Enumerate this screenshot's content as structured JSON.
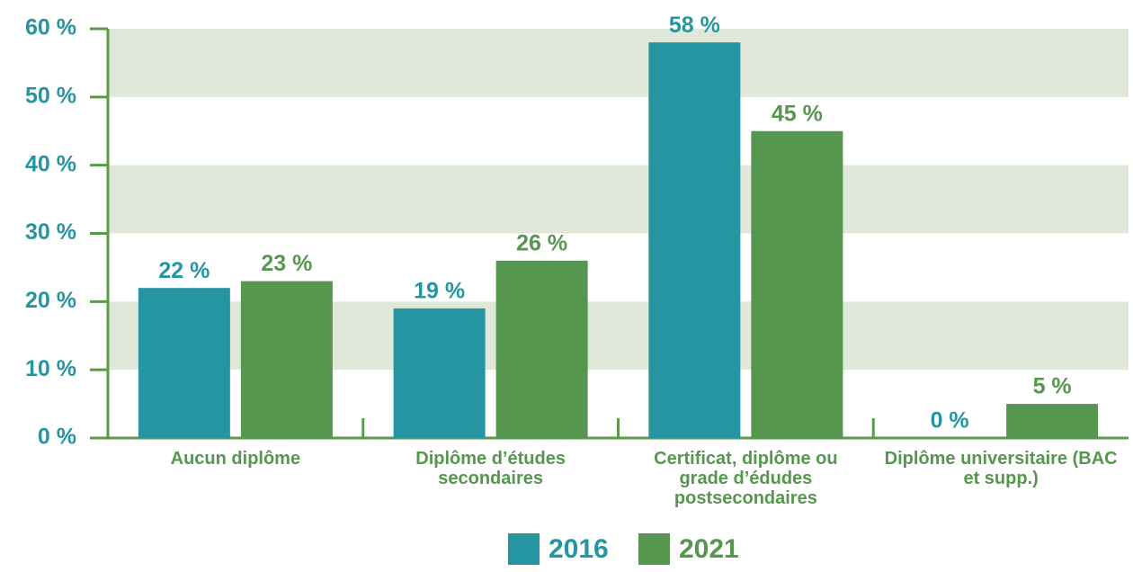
{
  "chart_data": {
    "type": "bar",
    "categories": [
      "Aucun diplôme",
      "Diplôme d’études secondaires",
      "Certificat, diplôme ou grade d’édudes postsecondaires",
      "Diplôme universitaire (BAC et supp.)"
    ],
    "series": [
      {
        "name": "2016",
        "color": "#2596a1",
        "values": [
          22,
          19,
          58,
          0
        ],
        "value_labels": [
          "22 %",
          "19 %",
          "58 %",
          "0 %"
        ]
      },
      {
        "name": "2021",
        "color": "#57964f",
        "values": [
          23,
          26,
          45,
          5
        ],
        "value_labels": [
          "23 %",
          "26 %",
          "45 %",
          "5 %"
        ]
      }
    ],
    "ylim": [
      0,
      60
    ],
    "yticks": [
      {
        "value": 0,
        "label": "0 %"
      },
      {
        "value": 10,
        "label": "10 %"
      },
      {
        "value": 20,
        "label": "20 %"
      },
      {
        "value": 30,
        "label": "30 %"
      },
      {
        "value": 40,
        "label": "40 %"
      },
      {
        "value": 50,
        "label": "50 %"
      },
      {
        "value": 60,
        "label": "60 %"
      }
    ],
    "grid": "bands",
    "band_color": "#e0e8da",
    "axis_color": "#5a9a4a",
    "legend": "bottom"
  }
}
